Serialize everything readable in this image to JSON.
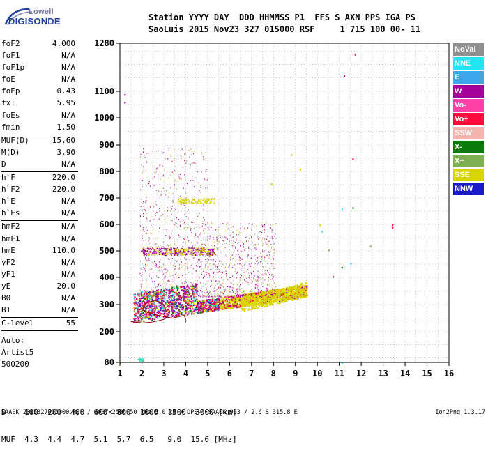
{
  "logo": {
    "line1": "Lowell",
    "line2": "DIGISONDE"
  },
  "header": {
    "line1": "Station YYYY DAY  DDD HHMMSS P1  FFS S AXN PPS IGA PS",
    "line2": "SaoLuis 2015 Nov23 327 015000 RSF     1 715 100 00- 11"
  },
  "params_group1": [
    {
      "name": "foF2",
      "value": "4.000"
    },
    {
      "name": "foF1",
      "value": "N/A"
    },
    {
      "name": "foF1p",
      "value": "N/A"
    },
    {
      "name": "foE",
      "value": "N/A"
    },
    {
      "name": "foEp",
      "value": "0.43"
    },
    {
      "name": "fxI",
      "value": "5.95"
    },
    {
      "name": "foEs",
      "value": "N/A"
    },
    {
      "name": "fmin",
      "value": "1.50"
    }
  ],
  "params_group2": [
    {
      "name": "MUF(D)",
      "value": "15.60"
    },
    {
      "name": "M(D)",
      "value": "3.90"
    },
    {
      "name": "D",
      "value": "N/A"
    }
  ],
  "params_group3": [
    {
      "name": "h`F",
      "value": "220.0"
    },
    {
      "name": "h`F2",
      "value": "220.0"
    },
    {
      "name": "h`E",
      "value": "N/A"
    },
    {
      "name": "h`Es",
      "value": "N/A"
    }
  ],
  "params_group4": [
    {
      "name": "hmF2",
      "value": "N/A"
    },
    {
      "name": "hmF1",
      "value": "N/A"
    },
    {
      "name": "hmE",
      "value": "110.0"
    },
    {
      "name": "yF2",
      "value": "N/A"
    },
    {
      "name": "yF1",
      "value": "N/A"
    },
    {
      "name": "yE",
      "value": "20.0"
    },
    {
      "name": "B0",
      "value": "N/A"
    },
    {
      "name": "B1",
      "value": "N/A"
    }
  ],
  "params_group5": [
    {
      "name": "C-level",
      "value": "55"
    }
  ],
  "auto": {
    "line1": "Auto:",
    "line2": "Artist5",
    "line3": "500200"
  },
  "legend": [
    {
      "label": "NoVal",
      "color": "#909090"
    },
    {
      "label": "NNE",
      "color": "#22e4f2"
    },
    {
      "label": "E",
      "color": "#3aa8ea"
    },
    {
      "label": "W",
      "color": "#a6009c"
    },
    {
      "label": "Vo-",
      "color": "#ff40a8"
    },
    {
      "label": "Vo+",
      "color": "#ff0a3c"
    },
    {
      "label": "SSW",
      "color": "#f2b4ac"
    },
    {
      "label": "X-",
      "color": "#0a7a0a"
    },
    {
      "label": "X+",
      "color": "#7cb050"
    },
    {
      "label": "SSE",
      "color": "#d8d400"
    },
    {
      "label": "NNW",
      "color": "#1a1ac8"
    }
  ],
  "chart_data": {
    "type": "scatter",
    "xlim": [
      1,
      16
    ],
    "ylim": [
      80,
      1280
    ],
    "xticks": [
      "1",
      "2",
      "3",
      "4",
      "5",
      "6",
      "7",
      "8",
      "9",
      "10",
      "11",
      "12",
      "13",
      "14",
      "15",
      "16"
    ],
    "yticks": [
      "80",
      "200",
      "300",
      "400",
      "500",
      "600",
      "700",
      "800",
      "900",
      "1000",
      "1100",
      "1280"
    ],
    "yscale": "non-linear (virtual height)",
    "grid": true
  },
  "muf_table": {
    "line1": "D    100  200  400  600  800  1000  1500  3000 [km]",
    "line2": "MUF  4.3  4.4  4.7  5.1  5.7  6.5   9.0  15.6 [MHz]"
  },
  "footer": {
    "left": "SAA0K_2015327015000.RSF / 300fx256h 50 kHz 5.0 km / DPS-4 SAA0K 903 / 2.6 S 315.8 E",
    "right": "Ion2Png 1.3.17"
  }
}
